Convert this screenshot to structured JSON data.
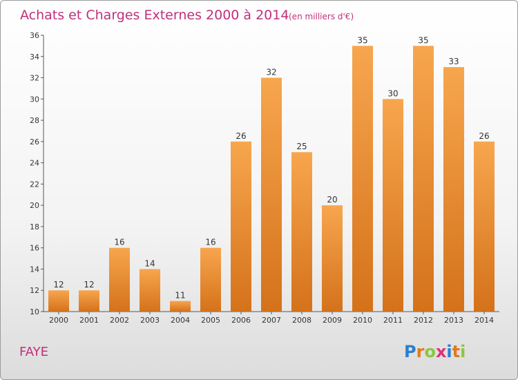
{
  "chart_data": {
    "type": "bar",
    "title": "Achats et Charges Externes 2000 à 2014",
    "subtitle": "(en milliers d'€)",
    "xlabel": "",
    "ylabel": "",
    "categories": [
      "2000",
      "2001",
      "2002",
      "2003",
      "2004",
      "2005",
      "2006",
      "2007",
      "2008",
      "2009",
      "2010",
      "2011",
      "2012",
      "2013",
      "2014"
    ],
    "values": [
      12,
      12,
      16,
      14,
      11,
      16,
      26,
      32,
      25,
      20,
      35,
      30,
      35,
      33,
      26
    ],
    "data_labels": [
      "12",
      "12",
      "16",
      "14",
      "11",
      "16",
      "26",
      "32",
      "25",
      "20",
      "35",
      "30",
      "35",
      "33",
      "26"
    ],
    "ylim": [
      10,
      36
    ],
    "yticks": [
      "10",
      "12",
      "14",
      "16",
      "18",
      "20",
      "22",
      "24",
      "26",
      "28",
      "30",
      "32",
      "34",
      "36"
    ],
    "grid": false,
    "legend": "none",
    "bar_color_top": "#f7a64e",
    "bar_color_bottom": "#d4721a"
  },
  "commune": "FAYE",
  "logo": {
    "letters": [
      "P",
      "r",
      "o",
      "x",
      "i",
      "t",
      "i"
    ],
    "colors": [
      "#2a7fd0",
      "#e07a1c",
      "#8cc63f",
      "#e0307a",
      "#2a7fd0",
      "#e07a1c",
      "#8cc63f"
    ]
  }
}
